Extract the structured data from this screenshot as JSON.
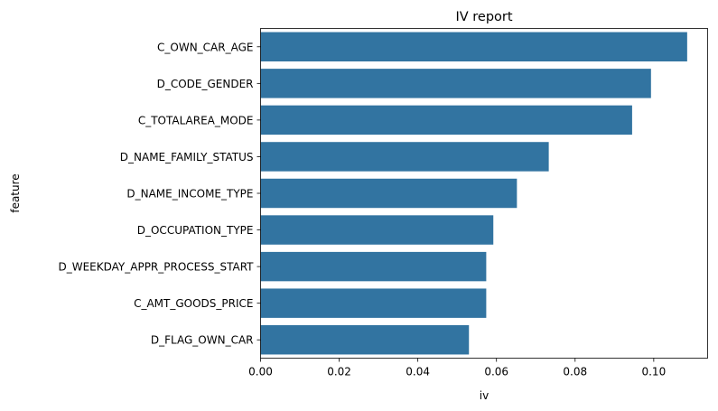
{
  "chart_data": {
    "type": "bar",
    "orientation": "horizontal",
    "title": "IV report",
    "xlabel": "iv",
    "ylabel": "feature",
    "categories": [
      "C_OWN_CAR_AGE",
      "D_CODE_GENDER",
      "C_TOTALAREA_MODE",
      "D_NAME_FAMILY_STATUS",
      "D_NAME_INCOME_TYPE",
      "D_OCCUPATION_TYPE",
      "D_WEEKDAY_APPR_PROCESS_START",
      "C_AMT_GOODS_PRICE",
      "D_FLAG_OWN_CAR"
    ],
    "values": [
      0.1085,
      0.0993,
      0.0945,
      0.0733,
      0.0652,
      0.0592,
      0.0574,
      0.0574,
      0.053
    ],
    "xlim": [
      0,
      0.1137
    ],
    "xticks": [
      0.0,
      0.02,
      0.04,
      0.06,
      0.08,
      0.1
    ],
    "xtick_labels": [
      "0.00",
      "0.02",
      "0.04",
      "0.06",
      "0.08",
      "0.10"
    ],
    "grid": false,
    "bar_color": "#3274a1"
  }
}
